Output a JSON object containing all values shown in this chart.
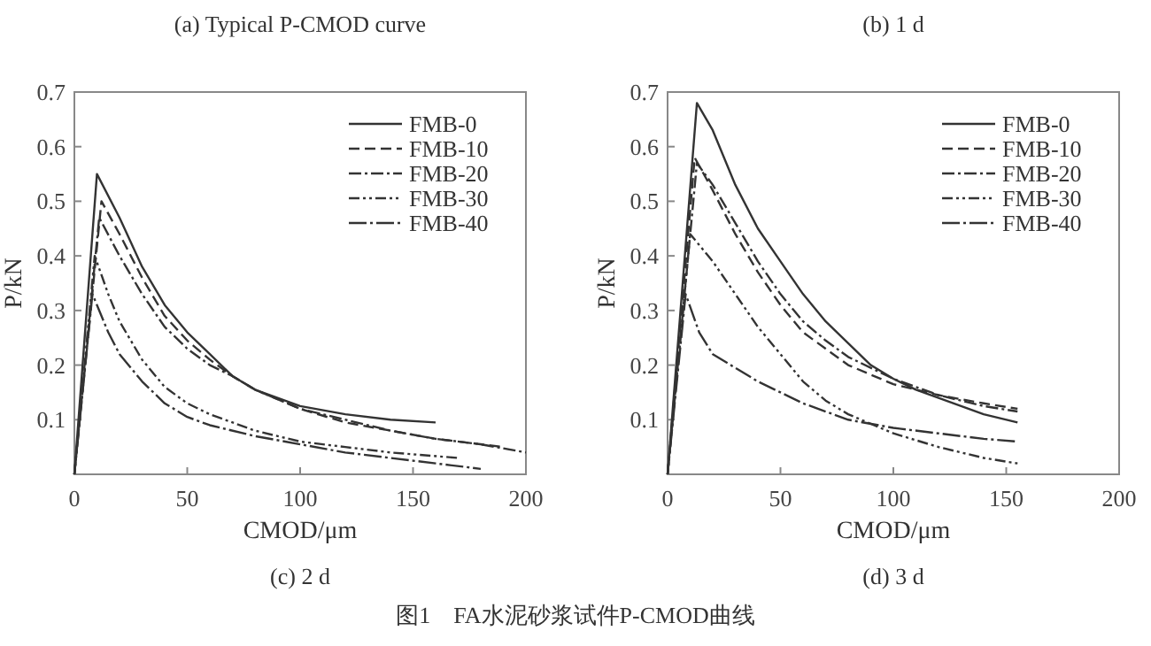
{
  "chart_data": [
    {
      "type": "line",
      "title": "(c) 2 d",
      "xlabel": "CMOD/μm",
      "ylabel": "P/kN",
      "annotations": [
        "(a) Typical P-CMOD curve",
        "图1　FA水泥砂浆试件P-CMOD曲线"
      ],
      "xlim": [
        0,
        200
      ],
      "ylim": [
        0,
        0.7
      ],
      "xticks": [
        0,
        50,
        100,
        150,
        200
      ],
      "yticks": [
        0.1,
        0.2,
        0.3,
        0.4,
        0.5,
        0.6,
        0.7
      ],
      "grid": false,
      "legend": "top right",
      "marker": "none",
      "series": [
        {
          "name": "FMB-0",
          "color": "#333333",
          "line_style": "solid",
          "x": [
            0,
            10,
            20,
            30,
            40,
            50,
            60,
            70,
            80,
            100,
            120,
            140,
            160
          ],
          "values": [
            0,
            0.55,
            0.47,
            0.38,
            0.31,
            0.26,
            0.22,
            0.18,
            0.155,
            0.125,
            0.11,
            0.1,
            0.095
          ]
        },
        {
          "name": "FMB-10",
          "color": "#333333",
          "line_style": "dashed",
          "x": [
            0,
            12,
            20,
            30,
            40,
            50,
            60,
            70,
            80,
            100,
            120,
            140,
            160,
            190
          ],
          "values": [
            0,
            0.5,
            0.44,
            0.36,
            0.29,
            0.245,
            0.21,
            0.18,
            0.155,
            0.12,
            0.095,
            0.08,
            0.065,
            0.05
          ]
        },
        {
          "name": "FMB-20",
          "color": "#333333",
          "line_style": "dashdot",
          "x": [
            0,
            11,
            20,
            30,
            40,
            50,
            60,
            70,
            80,
            100,
            120,
            140,
            160,
            180,
            200
          ],
          "values": [
            0,
            0.47,
            0.4,
            0.33,
            0.27,
            0.23,
            0.2,
            0.18,
            0.155,
            0.12,
            0.1,
            0.08,
            0.065,
            0.055,
            0.04
          ]
        },
        {
          "name": "FMB-30",
          "color": "#333333",
          "line_style": "dashdotdot",
          "x": [
            0,
            9,
            15,
            20,
            30,
            40,
            50,
            60,
            80,
            100,
            120,
            140,
            170
          ],
          "values": [
            0,
            0.4,
            0.33,
            0.28,
            0.21,
            0.16,
            0.13,
            0.11,
            0.08,
            0.06,
            0.05,
            0.04,
            0.03
          ]
        },
        {
          "name": "FMB-40",
          "color": "#333333",
          "line_style": "longdashdot",
          "x": [
            0,
            8,
            15,
            20,
            30,
            40,
            50,
            60,
            80,
            100,
            120,
            140,
            160,
            180
          ],
          "values": [
            0,
            0.33,
            0.26,
            0.22,
            0.17,
            0.13,
            0.105,
            0.09,
            0.07,
            0.055,
            0.04,
            0.03,
            0.02,
            0.01
          ]
        }
      ]
    },
    {
      "type": "line",
      "title": "(d) 3 d",
      "xlabel": "CMOD/μm",
      "ylabel": "P/kN",
      "annotations": [
        "(b) 1 d"
      ],
      "xlim": [
        0,
        200
      ],
      "ylim": [
        0,
        0.7
      ],
      "xticks": [
        0,
        50,
        100,
        150,
        200
      ],
      "yticks": [
        0.1,
        0.2,
        0.3,
        0.4,
        0.5,
        0.6,
        0.7
      ],
      "grid": false,
      "legend": "top right",
      "marker": "none",
      "series": [
        {
          "name": "FMB-0",
          "color": "#333333",
          "line_style": "solid",
          "x": [
            0,
            13,
            20,
            30,
            40,
            50,
            60,
            70,
            80,
            90,
            100,
            110,
            120,
            140,
            155
          ],
          "values": [
            0,
            0.68,
            0.63,
            0.53,
            0.45,
            0.39,
            0.33,
            0.28,
            0.24,
            0.2,
            0.175,
            0.155,
            0.14,
            0.11,
            0.095
          ]
        },
        {
          "name": "FMB-10",
          "color": "#333333",
          "line_style": "dashed",
          "x": [
            0,
            12,
            20,
            30,
            40,
            50,
            60,
            70,
            80,
            100,
            120,
            140,
            155
          ],
          "values": [
            0,
            0.58,
            0.52,
            0.44,
            0.37,
            0.31,
            0.26,
            0.23,
            0.2,
            0.165,
            0.145,
            0.13,
            0.12
          ]
        },
        {
          "name": "FMB-20",
          "color": "#333333",
          "line_style": "dashdot",
          "x": [
            0,
            13,
            20,
            30,
            40,
            50,
            60,
            70,
            80,
            100,
            120,
            140,
            155
          ],
          "values": [
            0,
            0.57,
            0.53,
            0.46,
            0.39,
            0.33,
            0.28,
            0.245,
            0.215,
            0.175,
            0.145,
            0.125,
            0.115
          ]
        },
        {
          "name": "FMB-30",
          "color": "#333333",
          "line_style": "dashdotdot",
          "x": [
            0,
            10,
            20,
            30,
            40,
            50,
            60,
            70,
            80,
            100,
            120,
            140,
            155
          ],
          "values": [
            0,
            0.44,
            0.39,
            0.33,
            0.27,
            0.22,
            0.17,
            0.135,
            0.11,
            0.075,
            0.05,
            0.03,
            0.02
          ]
        },
        {
          "name": "FMB-40",
          "color": "#333333",
          "line_style": "longdashdot",
          "x": [
            0,
            8,
            14,
            20,
            30,
            40,
            50,
            60,
            70,
            80,
            100,
            120,
            140,
            155
          ],
          "values": [
            0,
            0.33,
            0.26,
            0.22,
            0.195,
            0.17,
            0.15,
            0.13,
            0.115,
            0.1,
            0.085,
            0.075,
            0.065,
            0.06
          ]
        }
      ]
    }
  ]
}
